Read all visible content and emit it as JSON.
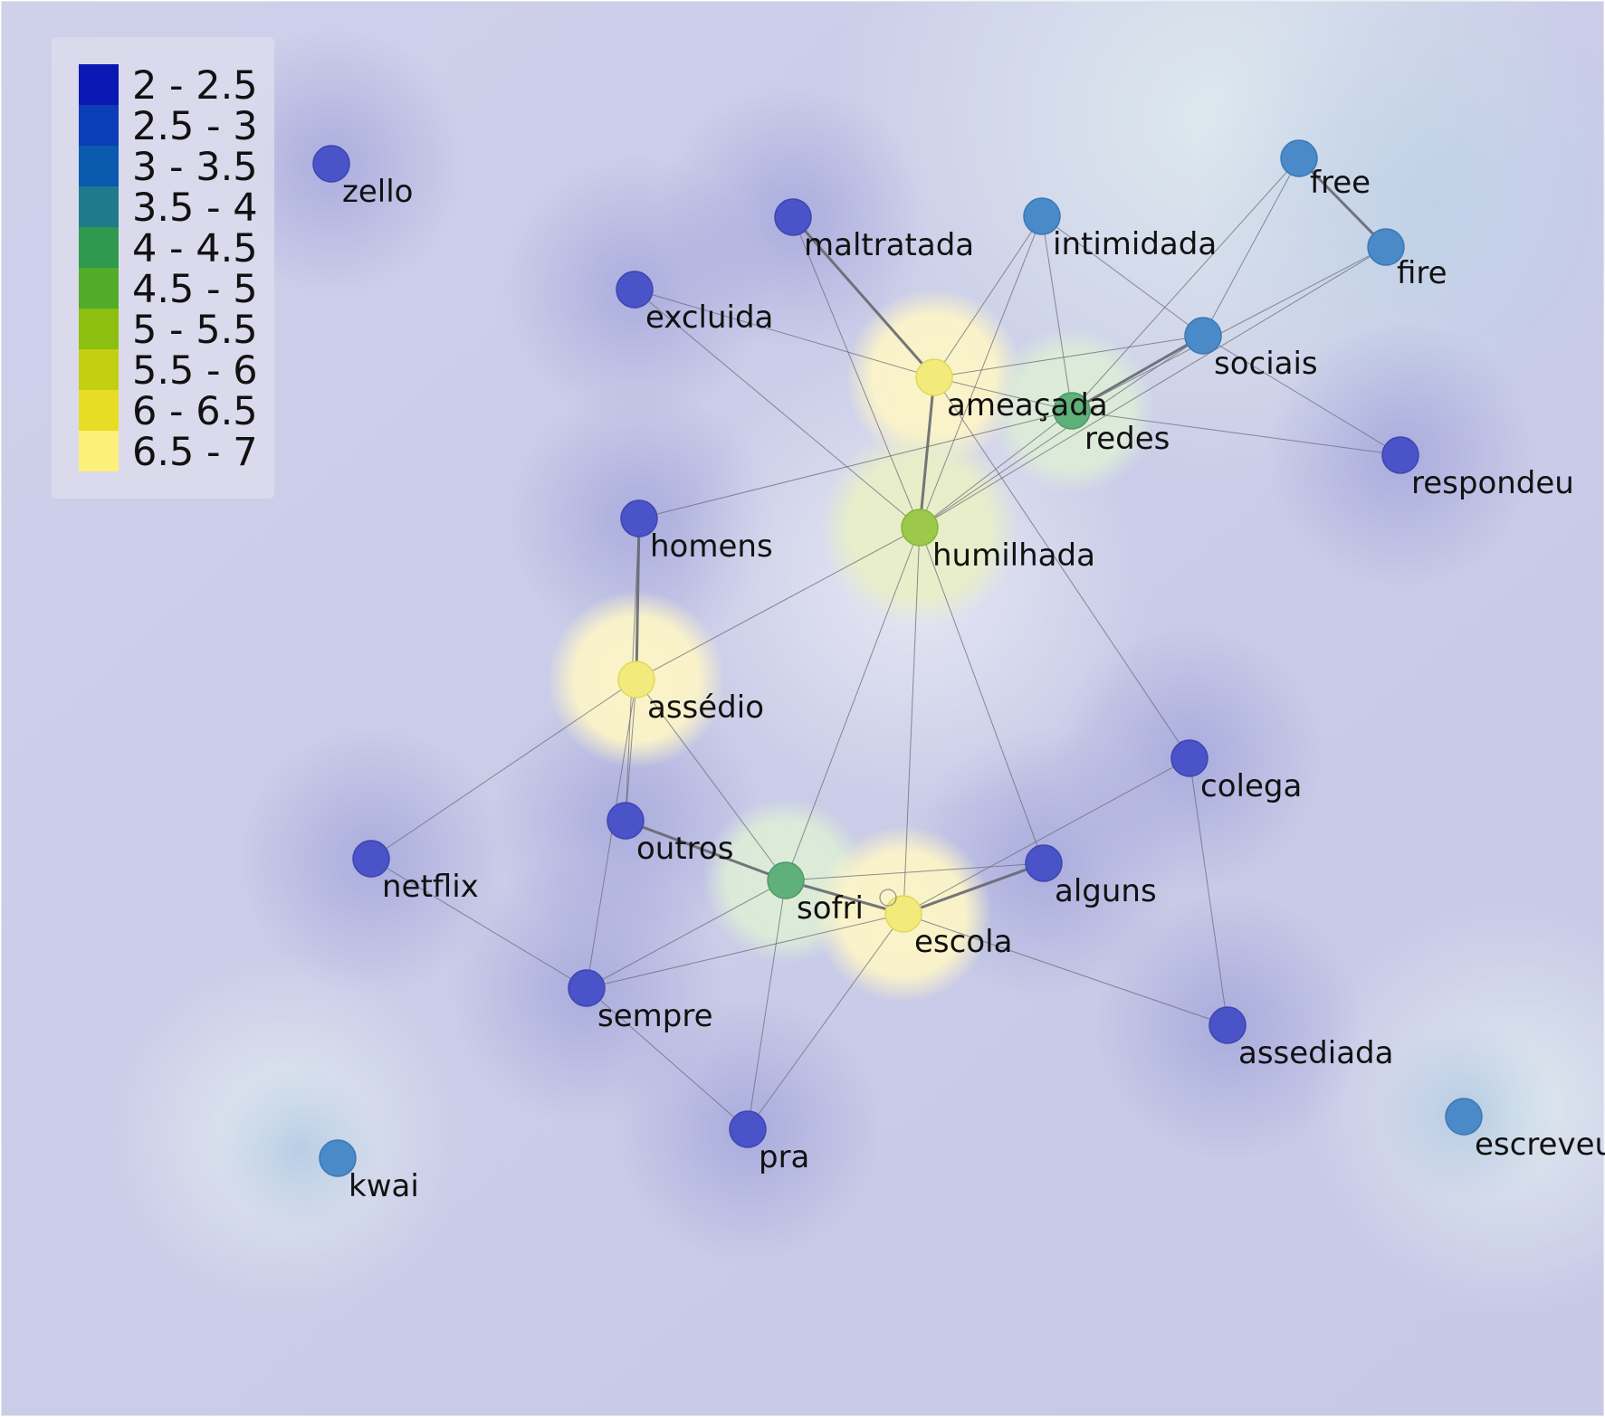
{
  "legend": {
    "items": [
      {
        "label": "2 - 2.5",
        "color": "#0a19b4"
      },
      {
        "label": "2.5 - 3",
        "color": "#0c3db8"
      },
      {
        "label": "3 - 3.5",
        "color": "#0a5ab0"
      },
      {
        "label": "3.5 - 4",
        "color": "#1f7a8c"
      },
      {
        "label": "4 - 4.5",
        "color": "#2f9950"
      },
      {
        "label": "4.5 - 5",
        "color": "#52ac2a"
      },
      {
        "label": "5 - 5.5",
        "color": "#8cbf10"
      },
      {
        "label": "5.5 - 6",
        "color": "#c3cf12"
      },
      {
        "label": "6 - 6.5",
        "color": "#e8dd25"
      },
      {
        "label": "6.5 - 7",
        "color": "#fdf07a"
      }
    ]
  },
  "nodes": [
    {
      "id": "zello",
      "label": "zello",
      "value": 2.5
    },
    {
      "id": "maltratada",
      "label": "maltratada",
      "value": 2.5
    },
    {
      "id": "intimidada",
      "label": "intimidada",
      "value": 3.2
    },
    {
      "id": "free",
      "label": "free",
      "value": 3.2
    },
    {
      "id": "fire",
      "label": "fire",
      "value": 3.2
    },
    {
      "id": "excluida",
      "label": "excluida",
      "value": 2.5
    },
    {
      "id": "sociais",
      "label": "sociais",
      "value": 3.2
    },
    {
      "id": "ameacada",
      "label": "ameaçada",
      "value": 6.8
    },
    {
      "id": "redes",
      "label": "redes",
      "value": 4.3
    },
    {
      "id": "respondeu",
      "label": "respondeu",
      "value": 2.5
    },
    {
      "id": "homens",
      "label": "homens",
      "value": 2.5
    },
    {
      "id": "humilhada",
      "label": "humilhada",
      "value": 4.8
    },
    {
      "id": "assedio",
      "label": "assédio",
      "value": 6.8
    },
    {
      "id": "colega",
      "label": "colega",
      "value": 2.5
    },
    {
      "id": "outros",
      "label": "outros",
      "value": 2.5
    },
    {
      "id": "netflix",
      "label": "netflix",
      "value": 2.5
    },
    {
      "id": "alguns",
      "label": "alguns",
      "value": 2.5
    },
    {
      "id": "sofri",
      "label": "sofri",
      "value": 4.3
    },
    {
      "id": "escola",
      "label": "escola",
      "value": 6.8
    },
    {
      "id": "sempre",
      "label": "sempre",
      "value": 2.5
    },
    {
      "id": "assediada",
      "label": "assediada",
      "value": 2.5
    },
    {
      "id": "pra",
      "label": "pra",
      "value": 2.5
    },
    {
      "id": "kwai",
      "label": "kwai",
      "value": 3.2
    },
    {
      "id": "escreveu",
      "label": "escreveu",
      "value": 3.2
    }
  ],
  "edges": [
    {
      "source": "maltratada",
      "target": "ameacada",
      "weight": 3
    },
    {
      "source": "maltratada",
      "target": "humilhada",
      "weight": 1
    },
    {
      "source": "ameacada",
      "target": "humilhada",
      "weight": 4
    },
    {
      "source": "excluida",
      "target": "ameacada",
      "weight": 1
    },
    {
      "source": "excluida",
      "target": "humilhada",
      "weight": 1
    },
    {
      "source": "ameacada",
      "target": "sociais",
      "weight": 1
    },
    {
      "source": "ameacada",
      "target": "redes",
      "weight": 1
    },
    {
      "source": "ameacada",
      "target": "intimidada",
      "weight": 1
    },
    {
      "source": "ameacada",
      "target": "colega",
      "weight": 1
    },
    {
      "source": "redes",
      "target": "sociais",
      "weight": 4
    },
    {
      "source": "redes",
      "target": "intimidada",
      "weight": 1
    },
    {
      "source": "redes",
      "target": "free",
      "weight": 1
    },
    {
      "source": "redes",
      "target": "respondeu",
      "weight": 1
    },
    {
      "source": "redes",
      "target": "homens",
      "weight": 1
    },
    {
      "source": "redes",
      "target": "humilhada",
      "weight": 1
    },
    {
      "source": "sociais",
      "target": "humilhada",
      "weight": 1
    },
    {
      "source": "sociais",
      "target": "respondeu",
      "weight": 1
    },
    {
      "source": "sociais",
      "target": "free",
      "weight": 1
    },
    {
      "source": "sociais",
      "target": "intimidada",
      "weight": 1
    },
    {
      "source": "free",
      "target": "fire",
      "weight": 4
    },
    {
      "source": "fire",
      "target": "redes",
      "weight": 1
    },
    {
      "source": "fire",
      "target": "humilhada",
      "weight": 1
    },
    {
      "source": "intimidada",
      "target": "humilhada",
      "weight": 1
    },
    {
      "source": "homens",
      "target": "assedio",
      "weight": 3
    },
    {
      "source": "homens",
      "target": "outros",
      "weight": 1
    },
    {
      "source": "humilhada",
      "target": "assedio",
      "weight": 1
    },
    {
      "source": "humilhada",
      "target": "sofri",
      "weight": 1
    },
    {
      "source": "humilhada",
      "target": "escola",
      "weight": 1
    },
    {
      "source": "humilhada",
      "target": "alguns",
      "weight": 1
    },
    {
      "source": "assedio",
      "target": "netflix",
      "weight": 1
    },
    {
      "source": "assedio",
      "target": "sofri",
      "weight": 1
    },
    {
      "source": "assedio",
      "target": "sempre",
      "weight": 1
    },
    {
      "source": "assedio",
      "target": "outros",
      "weight": 1
    },
    {
      "source": "outros",
      "target": "sofri",
      "weight": 3
    },
    {
      "source": "sofri",
      "target": "escola",
      "weight": 4
    },
    {
      "source": "sofri",
      "target": "alguns",
      "weight": 1
    },
    {
      "source": "sofri",
      "target": "sempre",
      "weight": 1
    },
    {
      "source": "sofri",
      "target": "pra",
      "weight": 1
    },
    {
      "source": "escola",
      "target": "alguns",
      "weight": 3
    },
    {
      "source": "escola",
      "target": "colega",
      "weight": 1
    },
    {
      "source": "escola",
      "target": "assediada",
      "weight": 1
    },
    {
      "source": "escola",
      "target": "sempre",
      "weight": 1
    },
    {
      "source": "escola",
      "target": "pra",
      "weight": 1
    },
    {
      "source": "colega",
      "target": "assediada",
      "weight": 1
    },
    {
      "source": "netflix",
      "target": "sempre",
      "weight": 1
    },
    {
      "source": "sempre",
      "target": "pra",
      "weight": 1
    }
  ]
}
